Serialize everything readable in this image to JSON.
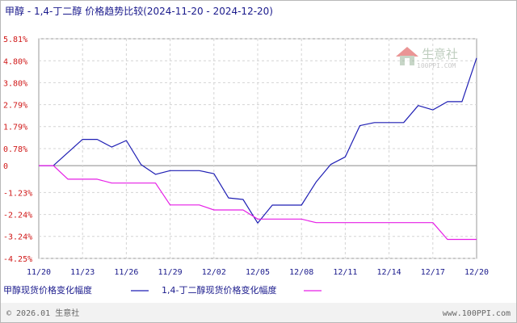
{
  "chart_data": {
    "type": "line",
    "title": "甲醇 - 1,4-丁二醇 价格趋势比较(2024-11-20 - 2024-12-20)",
    "x_tick_labels": [
      "11/20",
      "11/23",
      "11/26",
      "11/29",
      "12/02",
      "12/05",
      "12/08",
      "12/11",
      "12/14",
      "12/17",
      "12/20"
    ],
    "y_tick_labels": [
      "5.81%",
      "4.80%",
      "3.80%",
      "2.79%",
      "1.79%",
      "0.78%",
      "0",
      "-1.23%",
      "-2.24%",
      "-3.24%",
      "-4.25%"
    ],
    "y_tick_values": [
      5.81,
      4.8,
      3.8,
      2.79,
      1.79,
      0.78,
      0,
      -1.23,
      -2.24,
      -3.24,
      -4.25
    ],
    "ylim": [
      -4.25,
      5.81
    ],
    "x_range_days": [
      0,
      30
    ],
    "grid": true,
    "legend_position": "bottom",
    "series": [
      {
        "name": "甲醇现货价格变化幅度",
        "color": "#1f1fb4",
        "x": [
          0,
          1,
          3,
          4,
          5,
          6,
          7,
          8,
          9,
          10,
          11,
          12,
          13,
          14,
          15,
          16,
          17,
          18,
          19,
          20,
          21,
          22,
          23,
          24,
          25,
          26,
          27,
          28,
          29,
          30
        ],
        "values": [
          0,
          0,
          1.2,
          1.2,
          0.85,
          1.15,
          0.05,
          -0.4,
          -0.23,
          -0.23,
          -0.23,
          -0.37,
          -1.48,
          -1.55,
          -2.63,
          -1.81,
          -1.81,
          -1.81,
          -0.75,
          0.05,
          0.4,
          1.83,
          1.97,
          1.97,
          1.97,
          2.75,
          2.55,
          2.93,
          2.93,
          4.93
        ]
      },
      {
        "name": "1,4-丁二醇现货价格变化幅度",
        "color": "#e61ee6",
        "x": [
          0,
          1,
          2,
          3,
          4,
          5,
          6,
          7,
          8,
          9,
          10,
          11,
          12,
          13,
          14,
          15,
          16,
          17,
          18,
          19,
          20,
          21,
          22,
          23,
          24,
          25,
          26,
          27,
          28,
          29,
          30
        ],
        "values": [
          0,
          0,
          -0.62,
          -0.62,
          -0.62,
          -0.8,
          -0.8,
          -0.8,
          -0.8,
          -1.8,
          -1.8,
          -1.8,
          -2.03,
          -2.03,
          -2.03,
          -2.45,
          -2.45,
          -2.45,
          -2.45,
          -2.61,
          -2.61,
          -2.61,
          -2.61,
          -2.61,
          -2.61,
          -2.61,
          -2.61,
          -2.61,
          -3.38,
          -3.38,
          -3.38
        ]
      }
    ]
  },
  "watermark": {
    "brand": "生意社",
    "url": "100PPI.COM"
  },
  "footer": {
    "copyright": "© 2026.01 生意社",
    "site": "www.100PPI.com"
  }
}
